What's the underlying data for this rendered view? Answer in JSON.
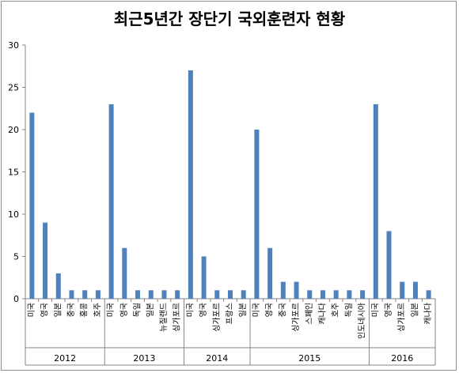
{
  "chart_data": {
    "type": "bar",
    "title": "최근5년간 장단기 국외훈련자 현황",
    "ylim": [
      0,
      30
    ],
    "yticks": [
      0,
      5,
      10,
      15,
      20,
      25,
      30
    ],
    "grid": false,
    "bar_color": "#4f81bd",
    "groups": [
      {
        "year": "2012",
        "categories": [
          "미국",
          "영국",
          "일본",
          "중국",
          "홍콩",
          "호주"
        ],
        "values": [
          22,
          9,
          3,
          1,
          1,
          1
        ]
      },
      {
        "year": "2013",
        "categories": [
          "미국",
          "영국",
          "독일",
          "일본",
          "뉴질랜드",
          "싱가포르"
        ],
        "values": [
          23,
          6,
          1,
          1,
          1,
          1
        ]
      },
      {
        "year": "2014",
        "categories": [
          "미국",
          "영국",
          "싱가포르",
          "프랑스",
          "일본"
        ],
        "values": [
          27,
          5,
          1,
          1,
          1
        ]
      },
      {
        "year": "2015",
        "categories": [
          "미국",
          "영국",
          "중국",
          "싱가포르",
          "스페인",
          "캐나다",
          "호주",
          "독일",
          "인도네시아"
        ],
        "values": [
          20,
          6,
          2,
          2,
          1,
          1,
          1,
          1,
          1
        ]
      },
      {
        "year": "2016",
        "categories": [
          "미국",
          "영국",
          "싱가포르",
          "일본",
          "캐나다"
        ],
        "values": [
          23,
          8,
          2,
          2,
          1
        ]
      }
    ]
  }
}
